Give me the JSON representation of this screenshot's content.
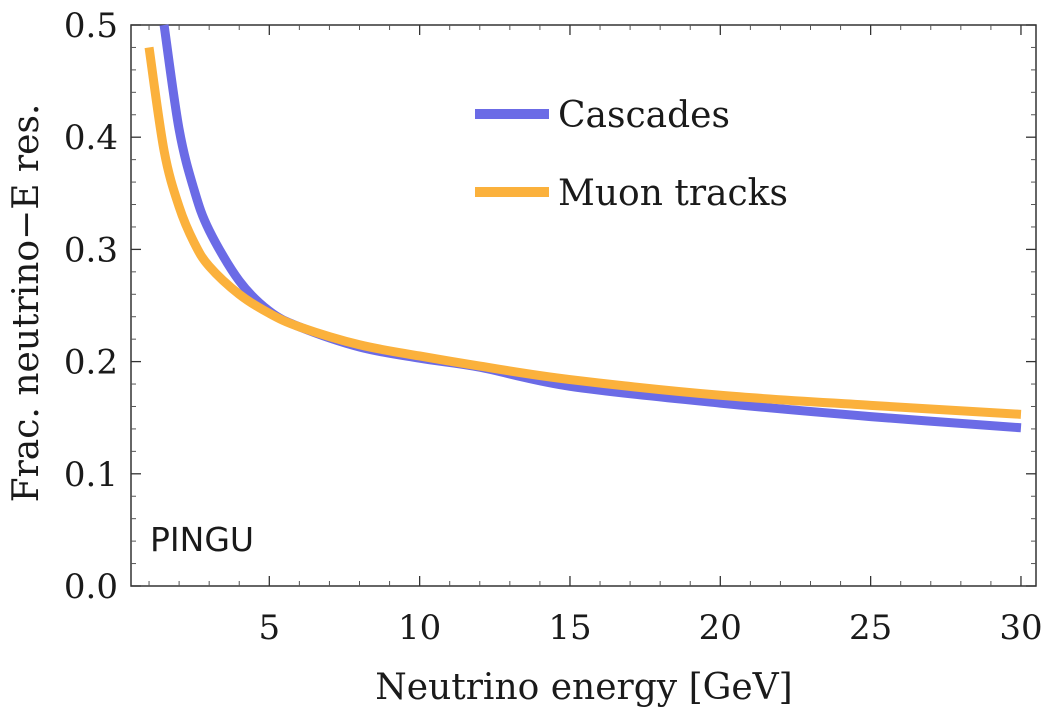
{
  "chart_data": {
    "type": "line",
    "title": "",
    "xlabel": "Neutrino energy [GeV]",
    "ylabel": "Frac. neutrino−E res.",
    "xlim": [
      0.4,
      30.5
    ],
    "ylim": [
      0.0,
      0.5
    ],
    "xticks": [
      5,
      10,
      15,
      20,
      25,
      30
    ],
    "xtick_labels": [
      "5",
      "10",
      "15",
      "20",
      "25",
      "30"
    ],
    "yticks": [
      0.0,
      0.1,
      0.2,
      0.3,
      0.4,
      0.5
    ],
    "ytick_labels": [
      "0.0",
      "0.1",
      "0.2",
      "0.3",
      "0.4",
      "0.5"
    ],
    "annotation": "PINGU",
    "legend_position": "top-center",
    "series": [
      {
        "name": "Cascades",
        "color": "#6b6be6",
        "x": [
          1.5,
          2,
          2.5,
          3,
          4,
          5,
          6,
          8,
          10,
          12,
          15,
          20,
          25,
          30
        ],
        "values": [
          0.5,
          0.407,
          0.353,
          0.317,
          0.272,
          0.245,
          0.231,
          0.213,
          0.203,
          0.195,
          0.178,
          0.163,
          0.151,
          0.141
        ]
      },
      {
        "name": "Muon tracks",
        "color": "#fbb13c",
        "x": [
          1,
          1.5,
          2,
          2.5,
          3,
          4,
          5,
          6,
          8,
          10,
          12,
          15,
          20,
          25,
          30
        ],
        "values": [
          0.48,
          0.388,
          0.338,
          0.306,
          0.285,
          0.26,
          0.243,
          0.231,
          0.215,
          0.205,
          0.196,
          0.184,
          0.17,
          0.161,
          0.153
        ]
      }
    ]
  }
}
